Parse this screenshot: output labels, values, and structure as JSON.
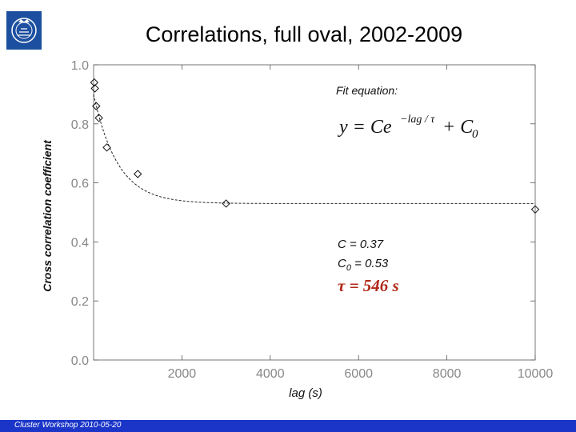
{
  "title": "Correlations, full oval, 2002-2009",
  "footer": "Cluster Workshop 2010-05-20",
  "colors": {
    "footer_bar": "#1a35c8",
    "logo": "#1d4fa0"
  },
  "chart_data": {
    "type": "scatter",
    "xlabel": "lag (s)",
    "ylabel": "Cross correlation coefficient",
    "xlim": [
      0,
      10000
    ],
    "ylim": [
      0,
      1
    ],
    "x_ticks": [
      "2000",
      "4000",
      "6000",
      "8000",
      "10000"
    ],
    "y_ticks": [
      "0.0",
      "0.2",
      "0.4",
      "0.6",
      "0.8",
      "1.0"
    ],
    "grid": false,
    "points": [
      {
        "x": 15,
        "y": 0.94
      },
      {
        "x": 30,
        "y": 0.92
      },
      {
        "x": 60,
        "y": 0.86
      },
      {
        "x": 120,
        "y": 0.82
      },
      {
        "x": 300,
        "y": 0.72
      },
      {
        "x": 1000,
        "y": 0.63
      },
      {
        "x": 3000,
        "y": 0.53
      },
      {
        "x": 10000,
        "y": 0.51
      }
    ],
    "fit": {
      "C": 0.37,
      "C0": 0.53,
      "tau": 546
    },
    "annotations": {
      "fit_label": "Fit equation:",
      "c_label": "C = 0.37",
      "c0_label": "C",
      "c0_sub": "0",
      "c0_value": " = 0.53",
      "tau_label": "τ = 546 s"
    }
  }
}
